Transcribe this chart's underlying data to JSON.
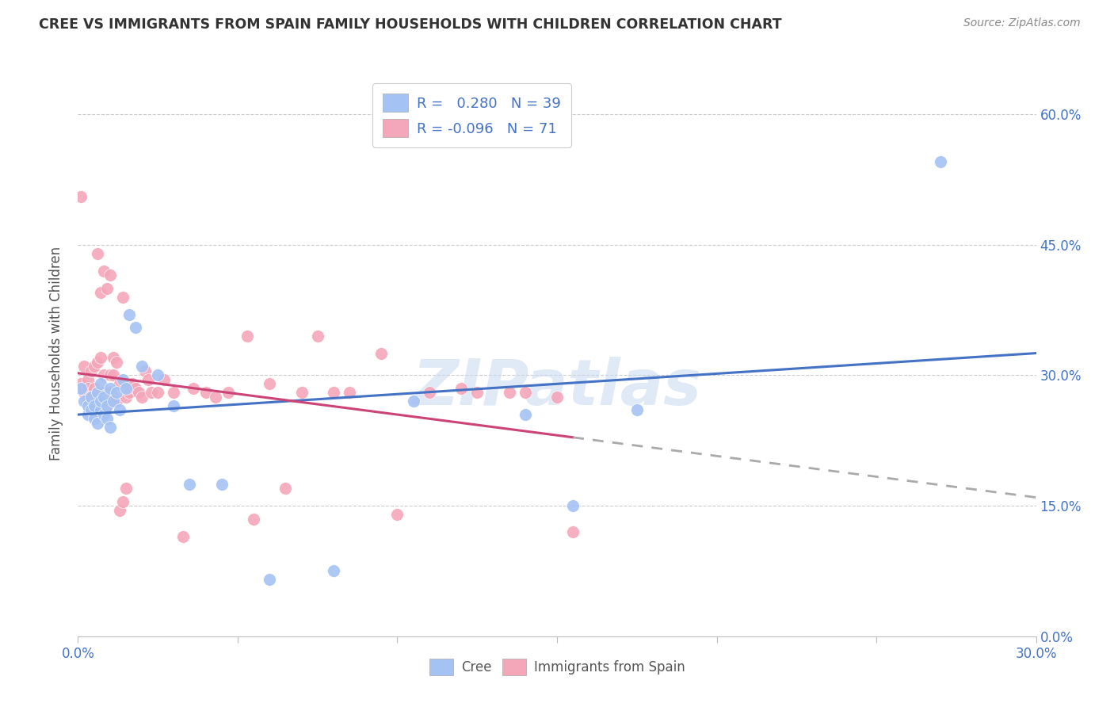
{
  "title": "CREE VS IMMIGRANTS FROM SPAIN FAMILY HOUSEHOLDS WITH CHILDREN CORRELATION CHART",
  "source": "Source: ZipAtlas.com",
  "ylabel_label": "Family Households with Children",
  "xlim": [
    0.0,
    0.3
  ],
  "ylim": [
    0.0,
    0.65
  ],
  "blue_color": "#a4c2f4",
  "pink_color": "#f4a7b9",
  "trend_blue": "#4472c4",
  "trend_pink": "#cc4477",
  "watermark": "ZIPatlas",
  "cree_x": [
    0.001,
    0.002,
    0.003,
    0.003,
    0.004,
    0.004,
    0.005,
    0.005,
    0.006,
    0.006,
    0.007,
    0.007,
    0.007,
    0.008,
    0.008,
    0.009,
    0.009,
    0.01,
    0.01,
    0.011,
    0.012,
    0.013,
    0.014,
    0.015,
    0.016,
    0.018,
    0.02,
    0.025,
    0.03,
    0.035,
    0.045,
    0.06,
    0.08,
    0.105,
    0.14,
    0.155,
    0.175,
    0.27
  ],
  "cree_y": [
    0.285,
    0.27,
    0.255,
    0.265,
    0.26,
    0.275,
    0.25,
    0.265,
    0.28,
    0.245,
    0.26,
    0.27,
    0.29,
    0.255,
    0.275,
    0.25,
    0.265,
    0.285,
    0.24,
    0.27,
    0.28,
    0.26,
    0.295,
    0.285,
    0.37,
    0.355,
    0.31,
    0.3,
    0.265,
    0.175,
    0.175,
    0.065,
    0.075,
    0.27,
    0.255,
    0.15,
    0.26,
    0.545
  ],
  "spain_x": [
    0.001,
    0.001,
    0.002,
    0.002,
    0.003,
    0.003,
    0.003,
    0.004,
    0.004,
    0.005,
    0.005,
    0.005,
    0.006,
    0.006,
    0.006,
    0.007,
    0.007,
    0.007,
    0.008,
    0.008,
    0.008,
    0.009,
    0.009,
    0.01,
    0.01,
    0.01,
    0.011,
    0.011,
    0.011,
    0.012,
    0.012,
    0.013,
    0.013,
    0.014,
    0.014,
    0.015,
    0.015,
    0.016,
    0.016,
    0.017,
    0.018,
    0.019,
    0.02,
    0.021,
    0.022,
    0.023,
    0.025,
    0.027,
    0.03,
    0.033,
    0.036,
    0.04,
    0.043,
    0.047,
    0.053,
    0.055,
    0.06,
    0.065,
    0.07,
    0.075,
    0.08,
    0.085,
    0.095,
    0.1,
    0.11,
    0.12,
    0.125,
    0.135,
    0.14,
    0.15,
    0.155
  ],
  "spain_y": [
    0.29,
    0.505,
    0.28,
    0.31,
    0.295,
    0.285,
    0.275,
    0.305,
    0.275,
    0.285,
    0.26,
    0.31,
    0.315,
    0.28,
    0.44,
    0.28,
    0.32,
    0.395,
    0.3,
    0.27,
    0.42,
    0.265,
    0.4,
    0.3,
    0.415,
    0.28,
    0.3,
    0.275,
    0.32,
    0.315,
    0.27,
    0.145,
    0.29,
    0.155,
    0.39,
    0.275,
    0.17,
    0.29,
    0.28,
    0.29,
    0.285,
    0.28,
    0.275,
    0.305,
    0.295,
    0.28,
    0.28,
    0.295,
    0.28,
    0.115,
    0.285,
    0.28,
    0.275,
    0.28,
    0.345,
    0.135,
    0.29,
    0.17,
    0.28,
    0.345,
    0.28,
    0.28,
    0.325,
    0.14,
    0.28,
    0.285,
    0.28,
    0.28,
    0.28,
    0.275,
    0.12
  ],
  "x_tick_positions": [
    0.0,
    0.05,
    0.1,
    0.15,
    0.2,
    0.25,
    0.3
  ],
  "y_tick_positions": [
    0.0,
    0.15,
    0.3,
    0.45,
    0.6
  ],
  "y_tick_labels": [
    "0.0%",
    "15.0%",
    "30.0%",
    "45.0%",
    "60.0%"
  ]
}
